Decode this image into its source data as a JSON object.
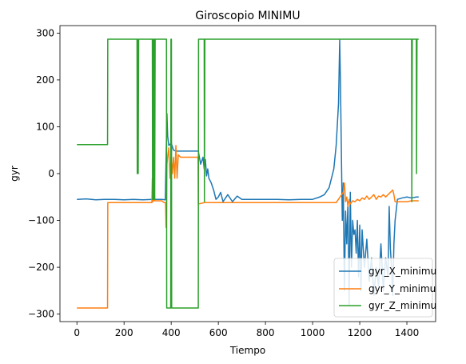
{
  "chart_data": {
    "type": "line",
    "title": "Giroscopio MINIMU",
    "xlabel": "Tiempo",
    "ylabel": "gyr",
    "xlim": [
      -72,
      1522
    ],
    "ylim": [
      -316,
      316
    ],
    "xticks": [
      0,
      200,
      400,
      600,
      800,
      1000,
      1200,
      1400
    ],
    "yticks": [
      -300,
      -200,
      -100,
      0,
      100,
      200,
      300
    ],
    "xtick_labels": [
      "0",
      "200",
      "400",
      "600",
      "800",
      "1000",
      "1200",
      "1400"
    ],
    "ytick_labels": [
      "−300",
      "−200",
      "−100",
      "0",
      "100",
      "200",
      "300"
    ],
    "grid": false,
    "legend_position": "lower-right",
    "series": [
      {
        "name": "gyr_X_minimu",
        "color": "#1f77b4",
        "x": [
          0,
          40,
          80,
          120,
          160,
          200,
          240,
          280,
          320,
          340,
          360,
          375,
          382,
          385,
          390,
          400,
          410,
          420,
          440,
          460,
          480,
          500,
          515,
          525,
          535,
          540,
          545,
          550,
          555,
          560,
          570,
          580,
          590,
          600,
          610,
          620,
          640,
          660,
          680,
          700,
          750,
          800,
          850,
          900,
          950,
          1000,
          1030,
          1050,
          1070,
          1090,
          1100,
          1110,
          1115,
          1118,
          1122,
          1126,
          1130,
          1135,
          1140,
          1145,
          1150,
          1155,
          1160,
          1165,
          1170,
          1175,
          1180,
          1185,
          1190,
          1195,
          1200,
          1205,
          1210,
          1220,
          1230,
          1240,
          1250,
          1260,
          1270,
          1280,
          1290,
          1300,
          1310,
          1320,
          1325,
          1330,
          1335,
          1340,
          1345,
          1350,
          1360,
          1380,
          1400,
          1420,
          1440,
          1450
        ],
        "y": [
          -55,
          -54,
          -56,
          -55,
          -55,
          -56,
          -55,
          -56,
          -55,
          -55,
          -55,
          -56,
          128,
          80,
          60,
          65,
          50,
          48,
          48,
          48,
          48,
          48,
          48,
          20,
          35,
          10,
          30,
          -5,
          10,
          -10,
          -20,
          -35,
          -55,
          -50,
          -40,
          -60,
          -45,
          -60,
          -48,
          -55,
          -55,
          -55,
          -55,
          -56,
          -55,
          -55,
          -50,
          -45,
          -30,
          10,
          60,
          150,
          285,
          200,
          50,
          -100,
          -20,
          -250,
          -80,
          -150,
          -60,
          -280,
          -40,
          -200,
          -100,
          -130,
          -120,
          -170,
          -100,
          -220,
          -110,
          -250,
          -120,
          -200,
          -140,
          -230,
          -180,
          -260,
          -200,
          -240,
          -150,
          -250,
          -180,
          -220,
          -70,
          -160,
          -200,
          -260,
          -150,
          -100,
          -55,
          -52,
          -50,
          -52,
          -50,
          -50
        ]
      },
      {
        "name": "gyr_Y_minimu",
        "color": "#ff7f0e",
        "x": [
          0,
          130,
          131,
          200,
          250,
          300,
          318,
          320,
          322,
          324,
          326,
          328,
          330,
          335,
          340,
          350,
          360,
          370,
          376,
          378,
          380,
          382,
          385,
          390,
          395,
          400,
          405,
          410,
          415,
          420,
          425,
          430,
          440,
          460,
          480,
          500,
          514,
          515,
          540,
          600,
          700,
          800,
          900,
          1000,
          1100,
          1130,
          1135,
          1140,
          1145,
          1150,
          1155,
          1160,
          1170,
          1180,
          1190,
          1200,
          1210,
          1220,
          1230,
          1240,
          1250,
          1260,
          1270,
          1280,
          1290,
          1300,
          1310,
          1320,
          1330,
          1340,
          1345,
          1350,
          1360,
          1380,
          1400,
          1420,
          1440,
          1450
        ],
        "y": [
          -287,
          -287,
          -62,
          -62,
          -62,
          -62,
          -62,
          -10,
          -60,
          -5,
          -58,
          -20,
          -58,
          -58,
          -58,
          -58,
          -58,
          -62,
          -62,
          -115,
          -100,
          20,
          35,
          55,
          -10,
          40,
          0,
          35,
          -10,
          60,
          -10,
          40,
          35,
          35,
          35,
          35,
          35,
          -65,
          -62,
          -62,
          -62,
          -62,
          -62,
          -62,
          -62,
          -40,
          -20,
          -60,
          -50,
          -70,
          -55,
          -65,
          -58,
          -60,
          -55,
          -58,
          -52,
          -55,
          -48,
          -55,
          -50,
          -45,
          -55,
          -48,
          -50,
          -45,
          -50,
          -45,
          -40,
          -35,
          -45,
          -60,
          -60,
          -60,
          -60,
          -58,
          -58,
          -58
        ]
      },
      {
        "name": "gyr_Z_minimu",
        "color": "#2ca02c",
        "x": [
          0,
          130,
          131,
          255,
          256,
          258,
          260,
          262,
          320,
          321,
          323,
          324,
          326,
          327,
          329,
          330,
          332,
          333,
          380,
          381,
          398,
          399,
          401,
          402,
          515,
          516,
          540,
          541,
          543,
          544,
          1420,
          1421,
          1423,
          1424,
          1440,
          1441,
          1443,
          1444,
          1450
        ],
        "y": [
          62,
          62,
          287,
          287,
          0,
          287,
          0,
          287,
          287,
          -55,
          287,
          -55,
          287,
          -55,
          287,
          -55,
          287,
          287,
          287,
          -287,
          -287,
          287,
          287,
          -287,
          -287,
          287,
          287,
          -60,
          287,
          287,
          287,
          -60,
          287,
          287,
          287,
          0,
          287,
          287,
          287
        ]
      }
    ]
  }
}
